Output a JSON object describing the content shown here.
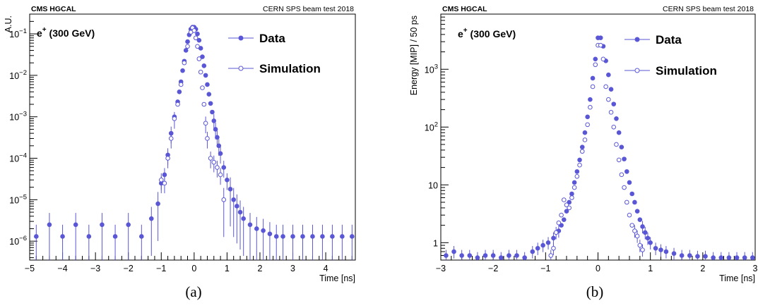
{
  "chart_data": [
    {
      "type": "scatter",
      "panel_label": "(a)",
      "header_left": "CMS HGCAL",
      "header_right": "CERN SPS beam test 2018",
      "beam_label": {
        "base": "e",
        "sup": "+",
        "rest": " (300 GeV)"
      },
      "xlabel": "Time [ns]",
      "ylabel": "A.U.",
      "xlim": [
        -5,
        4.9
      ],
      "ylim": [
        3.5e-07,
        0.3
      ],
      "yscale": "log",
      "x_ticks": [
        "−5",
        "−4",
        "−3",
        "−2",
        "−1",
        "0",
        "1",
        "2",
        "3",
        "4"
      ],
      "y_ticks": [
        {
          "base": "10",
          "exp": "−1"
        },
        {
          "base": "10",
          "exp": "−2"
        },
        {
          "base": "10",
          "exp": "−3"
        },
        {
          "base": "10",
          "exp": "−4"
        },
        {
          "base": "10",
          "exp": "−5"
        },
        {
          "base": "10",
          "exp": "−6"
        }
      ],
      "legend_position": "top-right",
      "series": [
        {
          "name": "Data",
          "marker": "filled-circle",
          "color": "#5a57d6",
          "x": [
            -1.1,
            -1.0,
            -0.9,
            -0.8,
            -0.7,
            -0.6,
            -0.5,
            -0.45,
            -0.4,
            -0.35,
            -0.3,
            -0.25,
            -0.2,
            -0.15,
            -0.1,
            -0.05,
            0.0,
            0.05,
            0.1,
            0.15,
            0.2,
            0.25,
            0.3,
            0.35,
            0.4,
            0.45,
            0.5,
            0.55,
            0.6,
            0.65,
            0.7,
            0.75,
            0.8,
            0.9,
            1.0,
            1.1,
            1.2,
            1.3,
            1.4,
            1.5,
            1.7,
            1.9,
            2.1,
            2.3,
            2.5,
            2.7,
            3.0,
            3.3,
            3.6,
            3.9,
            4.2,
            4.5,
            4.8,
            -4.8,
            -4.4,
            -4.0,
            -3.6,
            -3.2,
            -2.8,
            -2.4,
            -2.0,
            -1.6,
            -1.3
          ],
          "y": [
            8e-06,
            2.5e-05,
            4e-05,
            0.00012,
            0.0004,
            0.001,
            0.0023,
            0.004,
            0.007,
            0.013,
            0.022,
            0.04,
            0.065,
            0.095,
            0.13,
            0.145,
            0.145,
            0.13,
            0.1,
            0.07,
            0.045,
            0.028,
            0.017,
            0.01,
            0.006,
            0.0035,
            0.0021,
            0.0013,
            0.0008,
            0.0005,
            0.00032,
            0.0002,
            0.00013,
            6e-05,
            3e-05,
            1.8e-05,
            1e-05,
            7e-06,
            5e-06,
            3.5e-06,
            2.5e-06,
            2e-06,
            1.8e-06,
            1.5e-06,
            1.3e-06,
            1.3e-06,
            1.3e-06,
            1.3e-06,
            1.3e-06,
            1.3e-06,
            1.3e-06,
            1.3e-06,
            1.3e-06,
            1.3e-06,
            2.5e-06,
            1.3e-06,
            2.5e-06,
            1.3e-06,
            2.5e-06,
            1.3e-06,
            2.5e-06,
            1.3e-06,
            3.5e-06
          ]
        },
        {
          "name": "Simulation",
          "marker": "open-circle",
          "color": "#5a57d6",
          "x": [
            -1.0,
            -0.9,
            -0.8,
            -0.7,
            -0.6,
            -0.5,
            -0.4,
            -0.3,
            -0.2,
            -0.1,
            -0.05,
            0.0,
            0.05,
            0.1,
            0.15,
            0.2,
            0.25,
            0.3,
            0.35,
            0.4,
            0.5,
            0.6,
            0.7,
            0.8,
            0.9
          ],
          "y": [
            3e-05,
            2.5e-05,
            0.0001,
            0.0003,
            0.0009,
            0.002,
            0.006,
            0.02,
            0.05,
            0.11,
            0.14,
            0.12,
            0.08,
            0.05,
            0.025,
            0.012,
            0.005,
            0.002,
            0.0007,
            0.0003,
            0.0001,
            8e-05,
            6e-05,
            4e-05,
            1e-05
          ]
        }
      ]
    },
    {
      "type": "scatter",
      "panel_label": "(b)",
      "header_left": "CMS HGCAL",
      "header_right": "CERN SPS beam test 2018",
      "beam_label": {
        "base": "e",
        "sup": "+",
        "rest": " (300 GeV)"
      },
      "xlabel": "Time [ns]",
      "ylabel": "Energy [MIP] / 50 ps",
      "xlim": [
        -3,
        3
      ],
      "ylim": [
        0.5,
        9000
      ],
      "yscale": "log",
      "x_ticks": [
        "−3",
        "−2",
        "−1",
        "0",
        "1",
        "2",
        "3"
      ],
      "y_ticks": [
        {
          "base": "10",
          "exp": "3"
        },
        {
          "base": "10",
          "exp": "2"
        },
        {
          "base": "10",
          "exp": ""
        },
        {
          "base": "1",
          "exp": ""
        }
      ],
      "legend_position": "top-right",
      "series": [
        {
          "name": "Data",
          "marker": "filled-circle",
          "color": "#5a57d6",
          "x": [
            -2.9,
            -2.75,
            -2.6,
            -2.45,
            -2.3,
            -2.15,
            -2.0,
            -1.85,
            -1.7,
            -1.55,
            -1.4,
            -1.25,
            -1.15,
            -1.05,
            -0.95,
            -0.85,
            -0.75,
            -0.7,
            -0.65,
            -0.6,
            -0.55,
            -0.5,
            -0.45,
            -0.4,
            -0.35,
            -0.3,
            -0.25,
            -0.2,
            -0.15,
            -0.1,
            -0.05,
            0.0,
            0.05,
            0.1,
            0.15,
            0.2,
            0.25,
            0.3,
            0.35,
            0.4,
            0.45,
            0.5,
            0.55,
            0.6,
            0.65,
            0.7,
            0.75,
            0.8,
            0.85,
            0.9,
            0.95,
            1.0,
            1.1,
            1.2,
            1.3,
            1.45,
            1.6,
            1.75,
            1.9,
            2.05,
            2.2,
            2.35,
            2.5,
            2.65,
            2.8,
            2.95
          ],
          "y": [
            0.6,
            0.7,
            0.6,
            0.6,
            0.55,
            0.6,
            0.6,
            0.55,
            0.6,
            0.6,
            0.55,
            0.7,
            0.8,
            0.9,
            1.0,
            1.2,
            1.6,
            2.0,
            2.5,
            3.5,
            5,
            7,
            11,
            17,
            27,
            45,
            80,
            150,
            300,
            700,
            1500,
            3500,
            3500,
            2500,
            1400,
            800,
            450,
            250,
            140,
            80,
            45,
            28,
            17,
            11,
            7,
            5,
            3.5,
            2.5,
            1.9,
            1.5,
            1.2,
            1.0,
            0.8,
            0.75,
            0.7,
            0.65,
            0.6,
            0.6,
            0.58,
            0.58,
            0.55,
            0.55,
            0.55,
            0.55,
            0.55,
            0.55
          ]
        },
        {
          "name": "Simulation",
          "marker": "open-circle",
          "color": "#5a57d6",
          "x": [
            -0.9,
            -0.85,
            -0.8,
            -0.75,
            -0.7,
            -0.65,
            -0.6,
            -0.55,
            -0.5,
            -0.45,
            -0.4,
            -0.35,
            -0.3,
            -0.25,
            -0.2,
            -0.15,
            -0.1,
            -0.05,
            0.0,
            0.05,
            0.1,
            0.15,
            0.2,
            0.25,
            0.3,
            0.35,
            0.4,
            0.45,
            0.5,
            0.55,
            0.6,
            0.65,
            0.7,
            0.75,
            0.8,
            0.85
          ],
          "y": [
            0.6,
            0.8,
            1.5,
            2.2,
            3.0,
            5.5,
            4.5,
            4.0,
            6,
            9,
            14,
            22,
            38,
            60,
            110,
            220,
            500,
            1200,
            2600,
            2600,
            1500,
            500,
            300,
            180,
            100,
            50,
            27,
            15,
            9,
            5,
            3,
            2,
            1.6,
            1.3,
            0.9,
            0.75
          ]
        }
      ]
    }
  ]
}
